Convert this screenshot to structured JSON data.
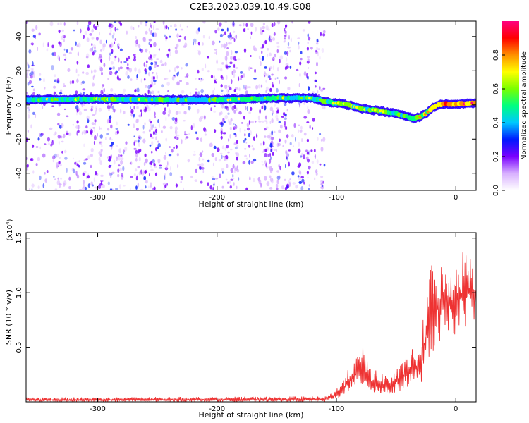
{
  "title": "C2E3.2023.039.10.49.G08",
  "chart_data": [
    {
      "type": "heatmap",
      "xlabel": "Height of straight line (km)",
      "ylabel": "Frequency (Hz)",
      "xlim": [
        -360,
        17
      ],
      "ylim": [
        -50,
        49
      ],
      "xticks": [
        -300,
        -200,
        -100,
        0
      ],
      "xtick_labels": [
        "-300",
        "-200",
        "-100",
        "0"
      ],
      "yticks": [
        -40,
        -20,
        0,
        20,
        40
      ],
      "ytick_labels": [
        "-40",
        "-20",
        "0",
        "20",
        "40"
      ],
      "colorbar": {
        "label": "Normalized spectral amplitude",
        "range": [
          0,
          1
        ],
        "ticks": [
          0.0,
          0.2,
          0.4,
          0.6,
          0.8
        ],
        "tick_labels": [
          "0.0",
          "0.2",
          "0.4",
          "0.6",
          "0.8"
        ],
        "colors": [
          "#ffffff",
          "#d8b0ff",
          "#7a00ff",
          "#0018ff",
          "#00c8ff",
          "#00ff80",
          "#7aff00",
          "#ffff00",
          "#ff9000",
          "#ff0000",
          "#ff0080"
        ]
      },
      "ridge": {
        "name": "dominant frequency",
        "x": [
          -360,
          -300,
          -250,
          -200,
          -150,
          -120,
          -110,
          -100,
          -90,
          -80,
          -70,
          -60,
          -50,
          -45,
          -40,
          -35,
          -30,
          -25,
          -20,
          -15,
          -10,
          -5,
          0,
          5,
          10,
          17
        ],
        "y": [
          3,
          3.5,
          3,
          3,
          4,
          4,
          2,
          1,
          0,
          -2,
          -3,
          -4,
          -5,
          -6,
          -7,
          -8,
          -7,
          -5,
          -2,
          0,
          0.5,
          0.5,
          0.5,
          0.5,
          1,
          1
        ],
        "amplitude": [
          0.45,
          0.5,
          0.5,
          0.5,
          0.5,
          0.45,
          0.55,
          0.55,
          0.55,
          0.55,
          0.55,
          0.55,
          0.55,
          0.55,
          0.55,
          0.6,
          0.6,
          0.65,
          0.75,
          0.85,
          0.95,
          0.95,
          0.9,
          0.95,
          0.9,
          0.85
        ]
      },
      "noise_region": {
        "x_range": [
          -360,
          -110
        ],
        "y_range": [
          -50,
          49
        ],
        "amplitude": [
          0.02,
          0.25
        ]
      }
    },
    {
      "type": "line",
      "xlabel": "Height of straight line (km)",
      "ylabel": "SNR (10 * v/v)",
      "scale_label": "(x10",
      "scale_exp": "4",
      "scale_close": ")",
      "xlim": [
        -360,
        17
      ],
      "ylim": [
        0,
        15500
      ],
      "xticks": [
        -300,
        -200,
        -100,
        0
      ],
      "xtick_labels": [
        "-300",
        "-200",
        "-100",
        "0"
      ],
      "yticks": [
        5000,
        10000,
        15000
      ],
      "ytick_labels": [
        "0.5",
        "1.0",
        "1.5"
      ],
      "color": "#ee3333",
      "envelope": {
        "x": [
          -360,
          -110,
          -100,
          -95,
          -90,
          -85,
          -80,
          -77,
          -75,
          -70,
          -65,
          -60,
          -55,
          -50,
          -45,
          -40,
          -35,
          -30,
          -28,
          -25,
          -22,
          -20,
          -18,
          -15,
          -13,
          -10,
          -5,
          0,
          5,
          10,
          15,
          17
        ],
        "low": [
          0,
          0,
          200,
          600,
          900,
          1000,
          1300,
          1500,
          1200,
          800,
          700,
          600,
          600,
          800,
          1000,
          1400,
          1800,
          1500,
          2000,
          2500,
          4000,
          4500,
          4500,
          3000,
          5000,
          6000,
          6500,
          6000,
          6500,
          7000,
          7500,
          7500
        ],
        "high": [
          400,
          500,
          1200,
          2000,
          3000,
          4000,
          4500,
          5500,
          4000,
          3000,
          2800,
          2600,
          2500,
          3000,
          3500,
          4500,
          5000,
          4500,
          7000,
          10000,
          12000,
          13000,
          12000,
          15500,
          13000,
          12000,
          12500,
          13000,
          14000,
          14000,
          13500,
          13000
        ]
      }
    }
  ]
}
